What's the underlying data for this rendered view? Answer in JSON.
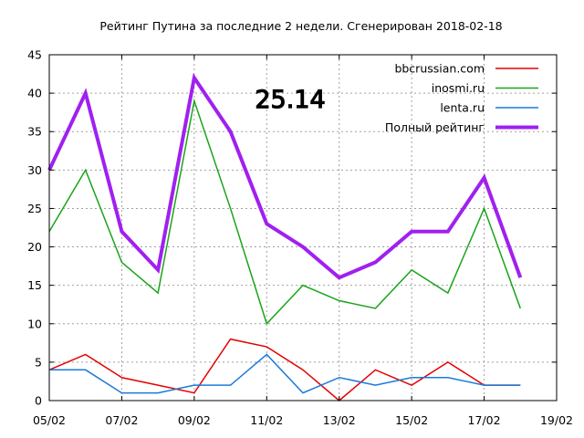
{
  "chart_data": {
    "type": "line",
    "title": "Рейтинг Путина за последние 2 недели. Сгенерирован 2018-02-18",
    "overlay_value": "25.14",
    "xlabel": "",
    "ylabel": "",
    "x_tick_labels": [
      "05/02",
      "07/02",
      "09/02",
      "11/02",
      "13/02",
      "15/02",
      "17/02",
      "19/02"
    ],
    "y_ticks": [
      0,
      5,
      10,
      15,
      20,
      25,
      30,
      35,
      40,
      45
    ],
    "ylim": [
      0,
      45
    ],
    "xlim": [
      0,
      14
    ],
    "grid": true,
    "legend_position": "top-right",
    "x": [
      0,
      1,
      2,
      3,
      4,
      5,
      6,
      7,
      8,
      9,
      10,
      11,
      12,
      13
    ],
    "series": [
      {
        "name": "bbcrussian.com",
        "color": "#e50000",
        "width": 1.5,
        "values": [
          4,
          6,
          3,
          2,
          1,
          8,
          7,
          4,
          0,
          4,
          2,
          5,
          2,
          2
        ]
      },
      {
        "name": "inosmi.ru",
        "color": "#1aa51a",
        "width": 1.5,
        "values": [
          22,
          30,
          18,
          14,
          39,
          25,
          10,
          15,
          13,
          12,
          17,
          14,
          25,
          12
        ]
      },
      {
        "name": "lenta.ru",
        "color": "#1a7ad9",
        "width": 1.5,
        "values": [
          4,
          4,
          1,
          1,
          2,
          2,
          6,
          1,
          3,
          2,
          3,
          3,
          2,
          2
        ]
      },
      {
        "name": "Полный рейтинг",
        "color": "#a020f0",
        "width": 4,
        "values": [
          30,
          40,
          22,
          17,
          42,
          35,
          23,
          20,
          16,
          18,
          22,
          22,
          29,
          16
        ]
      }
    ]
  }
}
